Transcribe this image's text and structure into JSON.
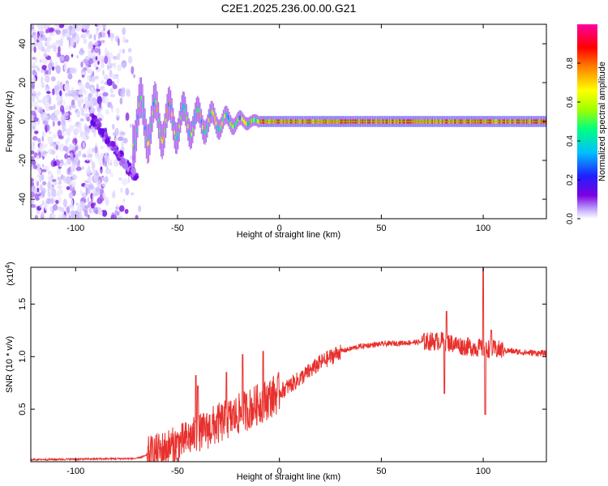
{
  "chart_data": [
    {
      "type": "heatmap",
      "title": "C2E1.2025.236.00.00.G21",
      "xlabel": "Height of straight line (km)",
      "ylabel": "Frequency (Hz)",
      "xlim": [
        -122,
        131
      ],
      "ylim": [
        -50,
        50
      ],
      "xticks": [
        -100,
        -50,
        0,
        50,
        100
      ],
      "yticks": [
        -40,
        -20,
        0,
        20,
        40
      ],
      "colorbar": {
        "label": "Normalized spectral amplitude",
        "range": [
          0,
          1
        ],
        "ticks": [
          "0.0",
          "0.2",
          "0.4",
          "0.6",
          "0.8"
        ],
        "colors": [
          "#ffffff",
          "#c8b8ff",
          "#7a00e0",
          "#2020ff",
          "#00c0ff",
          "#00ff80",
          "#a0ff00",
          "#ffff00",
          "#ff8000",
          "#ff0000",
          "#ff00a0"
        ]
      },
      "features": [
        {
          "name": "scattered noise",
          "x_range": [
            -122,
            -68
          ],
          "y_range": [
            -50,
            50
          ],
          "amplitude": 0.1
        },
        {
          "name": "descending chirp",
          "x_range": [
            -92,
            -70
          ],
          "y_start": 2,
          "y_end": -30,
          "amplitude": 0.2
        },
        {
          "name": "signal band",
          "x_range": [
            -72,
            131
          ],
          "y_center": 0,
          "amplitude": 0.85
        }
      ]
    },
    {
      "type": "line",
      "xlabel": "Height of straight line (km)",
      "ylabel": "SNR (10 * v/v)",
      "yscale_label": "(x10",
      "yscale_exp": "4",
      "yscale_close": ")",
      "xlim": [
        -122,
        131
      ],
      "ylim": [
        0,
        1.85
      ],
      "xticks": [
        -100,
        -50,
        0,
        50,
        100
      ],
      "yticks": [
        "0.5",
        "1.0",
        "1.5"
      ],
      "color": "#e8302c",
      "series": [
        {
          "name": "SNR",
          "profile_x": [
            -122,
            -70,
            -62,
            -50,
            -40,
            -30,
            -20,
            -10,
            0,
            10,
            20,
            30,
            40,
            50,
            60,
            70,
            80,
            90,
            100,
            110,
            120,
            131
          ],
          "profile_y": [
            0.02,
            0.03,
            0.08,
            0.17,
            0.27,
            0.36,
            0.45,
            0.55,
            0.66,
            0.79,
            0.94,
            1.05,
            1.1,
            1.12,
            1.13,
            1.14,
            1.15,
            1.1,
            1.08,
            1.06,
            1.04,
            1.03
          ]
        }
      ],
      "spikes": [
        {
          "x": -41,
          "y": 0.82
        },
        {
          "x": -40,
          "y": 0.72
        },
        {
          "x": -26,
          "y": 0.85
        },
        {
          "x": -18,
          "y": 1.02
        },
        {
          "x": -8,
          "y": 1.05
        },
        {
          "x": 82,
          "y": 1.43
        },
        {
          "x": 81,
          "y": 0.65
        },
        {
          "x": 100,
          "y": 1.85
        },
        {
          "x": 101,
          "y": 0.45
        },
        {
          "x": 104,
          "y": 1.25
        }
      ]
    }
  ]
}
